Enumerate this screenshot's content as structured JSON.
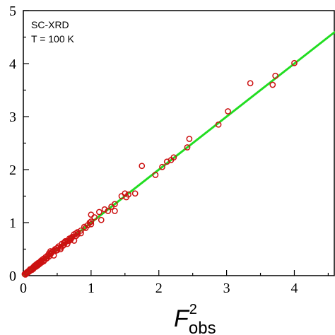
{
  "chart_data": {
    "type": "scatter",
    "title": "",
    "annotations": [
      "SC-XRD",
      "T = 100 K"
    ],
    "xlabel": {
      "base": "F",
      "superscript": "2",
      "subscript": "obs"
    },
    "ylabel": "",
    "xlim": [
      0,
      4.6
    ],
    "ylim": [
      0,
      5
    ],
    "x_ticks": [
      "0",
      "1",
      "2",
      "3",
      "4"
    ],
    "y_ticks": [
      "0",
      "1",
      "2",
      "3",
      "4",
      "5"
    ],
    "grid": false,
    "marker_color": "#cc1111",
    "fit_line_color": "#22dd22",
    "fit_line": {
      "x": [
        0,
        4.6
      ],
      "y": [
        0,
        4.6
      ]
    },
    "points": {
      "x": [
        0.02,
        0.03,
        0.04,
        0.05,
        0.06,
        0.07,
        0.08,
        0.09,
        0.1,
        0.11,
        0.12,
        0.13,
        0.14,
        0.15,
        0.16,
        0.17,
        0.18,
        0.19,
        0.2,
        0.21,
        0.22,
        0.23,
        0.24,
        0.25,
        0.26,
        0.27,
        0.28,
        0.3,
        0.31,
        0.33,
        0.34,
        0.36,
        0.38,
        0.4,
        0.41,
        0.43,
        0.45,
        0.47,
        0.5,
        0.52,
        0.55,
        0.57,
        0.6,
        0.62,
        0.65,
        0.68,
        0.7,
        0.72,
        0.75,
        0.78,
        0.8,
        0.85,
        0.9,
        0.95,
        0.98,
        1.0,
        1.05,
        1.12,
        1.15,
        1.2,
        1.25,
        1.3,
        1.35,
        1.45,
        1.5,
        1.52,
        1.65,
        1.75,
        1.95,
        2.05,
        2.12,
        2.18,
        2.22,
        2.42,
        2.45,
        2.88,
        3.02,
        3.35,
        3.68,
        3.72,
        4.0,
        0.4,
        0.45,
        0.5,
        0.55,
        0.6,
        0.65,
        0.7,
        0.75,
        0.8,
        0.85,
        0.92,
        1.0,
        0.38,
        0.42,
        0.48,
        0.52,
        0.58,
        0.62,
        0.68,
        0.72,
        0.78,
        0.3,
        0.35,
        0.25,
        0.2,
        0.15,
        0.1,
        0.05,
        1.0,
        1.35,
        1.55
      ],
      "y": [
        0.03,
        0.02,
        0.05,
        0.04,
        0.07,
        0.06,
        0.09,
        0.08,
        0.12,
        0.1,
        0.13,
        0.11,
        0.15,
        0.14,
        0.18,
        0.16,
        0.2,
        0.17,
        0.22,
        0.19,
        0.24,
        0.21,
        0.25,
        0.26,
        0.28,
        0.25,
        0.3,
        0.32,
        0.29,
        0.35,
        0.32,
        0.38,
        0.36,
        0.46,
        0.42,
        0.45,
        0.47,
        0.5,
        0.48,
        0.55,
        0.53,
        0.6,
        0.58,
        0.63,
        0.65,
        0.7,
        0.68,
        0.72,
        0.78,
        0.75,
        0.82,
        0.85,
        0.92,
        0.95,
        1.0,
        1.15,
        1.1,
        1.2,
        1.05,
        1.25,
        1.22,
        1.3,
        1.35,
        1.5,
        1.55,
        1.48,
        1.55,
        2.07,
        1.9,
        2.05,
        2.15,
        2.18,
        2.23,
        2.42,
        2.58,
        2.85,
        3.1,
        3.63,
        3.6,
        3.77,
        4.01,
        0.4,
        0.38,
        0.52,
        0.5,
        0.62,
        0.6,
        0.7,
        0.66,
        0.78,
        0.8,
        0.9,
        1.02,
        0.42,
        0.44,
        0.47,
        0.55,
        0.56,
        0.65,
        0.66,
        0.73,
        0.8,
        0.27,
        0.33,
        0.23,
        0.22,
        0.13,
        0.11,
        0.06,
        0.97,
        1.22,
        1.53
      ]
    }
  }
}
